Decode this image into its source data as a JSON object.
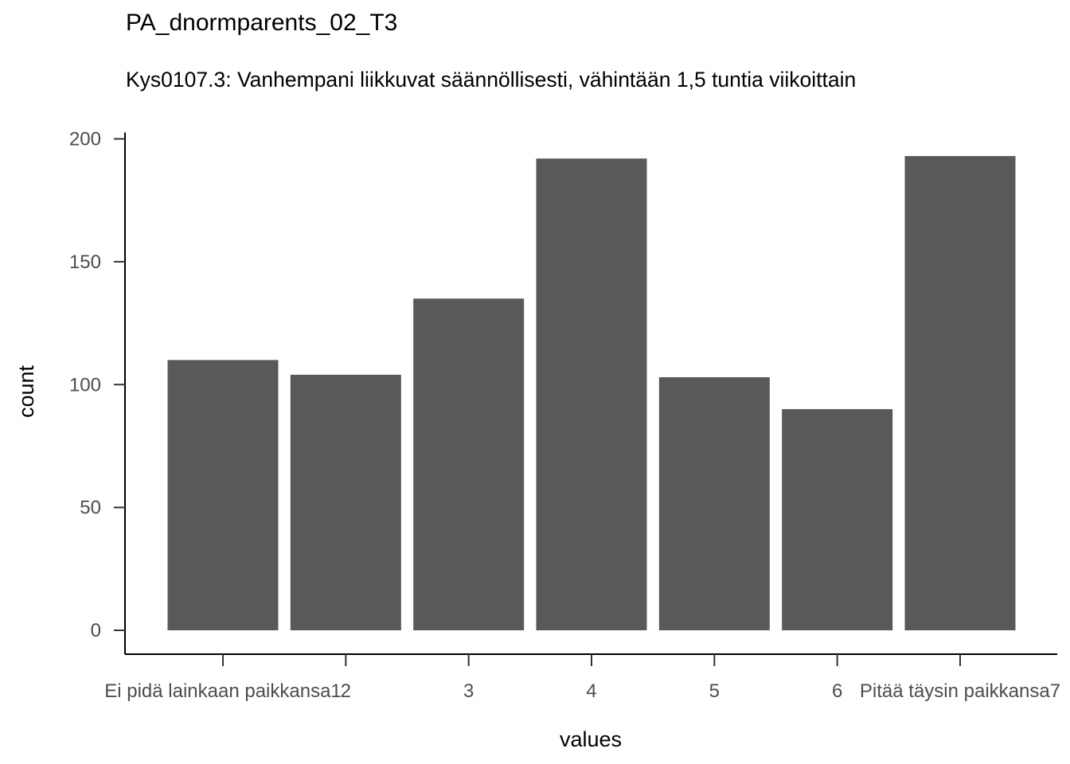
{
  "chart_data": {
    "type": "bar",
    "title": "PA_dnormparents_02_T3",
    "subtitle": "Kys0107.3: Vanhempani liikkuvat säännöllisesti, vähintään 1,5 tuntia viikoittain",
    "xlabel": "values",
    "ylabel": "count",
    "categories": [
      "Ei pidä lainkaan paikkansa1",
      "2",
      "3",
      "4",
      "5",
      "6",
      "Pitää täysin paikkansa7"
    ],
    "values": [
      110,
      104,
      135,
      192,
      103,
      90,
      193
    ],
    "ylim": [
      0,
      200
    ],
    "yticks": [
      0,
      50,
      100,
      150,
      200
    ],
    "bar_color": "#595959",
    "grid": false,
    "legend": "none"
  }
}
